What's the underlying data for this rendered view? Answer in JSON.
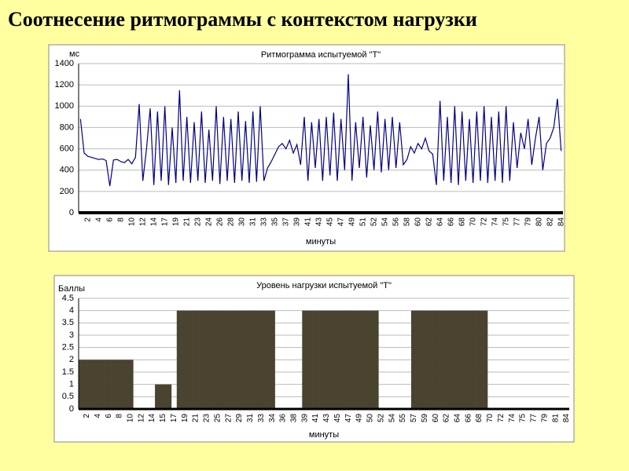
{
  "title": "Соотнесение ритмограммы с контекстом нагрузки",
  "chart_data": [
    {
      "type": "line",
      "title": "Ритмограмма испытуемой \"T\"",
      "y_label": "мс",
      "x_label": "минуты",
      "color": "#000080",
      "grid": true,
      "ylim": [
        0,
        1400
      ],
      "yticks": [
        0,
        200,
        400,
        600,
        800,
        1000,
        1200,
        1400
      ],
      "categories": [
        null,
        null,
        "2",
        null,
        null,
        "4",
        null,
        null,
        "6",
        null,
        null,
        "8",
        null,
        null,
        "10",
        null,
        null,
        "12",
        null,
        null,
        "14",
        null,
        null,
        "17",
        null,
        null,
        "19",
        null,
        null,
        "21",
        null,
        null,
        "23",
        null,
        null,
        "24",
        null,
        null,
        "26",
        null,
        null,
        "28",
        null,
        null,
        "30",
        null,
        null,
        "31",
        null,
        null,
        "33",
        null,
        null,
        "35",
        null,
        null,
        "37",
        null,
        null,
        "39",
        null,
        null,
        "41",
        null,
        null,
        "43",
        null,
        null,
        "45",
        null,
        null,
        "47",
        null,
        null,
        "49",
        null,
        null,
        "51",
        null,
        null,
        "52",
        null,
        null,
        "54",
        null,
        null,
        "56",
        null,
        null,
        "58",
        null,
        null,
        "60",
        null,
        null,
        "62",
        null,
        null,
        "64",
        null,
        null,
        "66",
        null,
        null,
        "68",
        null,
        null,
        "70",
        null,
        null,
        "72",
        null,
        null,
        "74",
        null,
        null,
        "75",
        null,
        null,
        "77",
        null,
        null,
        "79",
        null,
        null,
        "80",
        null,
        null,
        "82",
        null,
        null,
        "84"
      ],
      "values": [
        880,
        560,
        530,
        520,
        510,
        500,
        505,
        490,
        250,
        495,
        500,
        480,
        470,
        500,
        460,
        520,
        1020,
        300,
        600,
        980,
        260,
        950,
        300,
        1000,
        260,
        800,
        280,
        1150,
        300,
        900,
        280,
        850,
        300,
        950,
        280,
        780,
        300,
        1000,
        270,
        900,
        300,
        880,
        280,
        950,
        300,
        860,
        280,
        950,
        290,
        1000,
        300,
        420,
        480,
        550,
        620,
        650,
        600,
        680,
        560,
        640,
        450,
        900,
        300,
        850,
        420,
        880,
        300,
        900,
        350,
        940,
        300,
        880,
        400,
        1300,
        300,
        850,
        420,
        900,
        330,
        820,
        400,
        950,
        380,
        880,
        400,
        900,
        420,
        850,
        450,
        500,
        620,
        560,
        650,
        600,
        700,
        580,
        550,
        260,
        1050,
        300,
        900,
        280,
        1000,
        260,
        950,
        300,
        880,
        280,
        950,
        300,
        1000,
        280,
        900,
        300,
        950,
        280,
        1000,
        300,
        850,
        420,
        750,
        600,
        880,
        450,
        700,
        900,
        400,
        650,
        700,
        800,
        1070,
        580
      ]
    },
    {
      "type": "bar",
      "title": "Уровень нагрузки испытуемой \"T\"",
      "y_label": "Баллы",
      "x_label": "минуты",
      "color": "#4a4330",
      "grid": true,
      "ylim": [
        0,
        4.5
      ],
      "yticks": [
        0,
        0.5,
        1,
        1.5,
        2,
        2.5,
        3,
        3.5,
        4,
        4.5
      ],
      "categories": [
        null,
        "2",
        null,
        "4",
        null,
        "6",
        null,
        "8",
        null,
        "10",
        null,
        "12",
        null,
        "14",
        null,
        "15",
        null,
        "17",
        null,
        "19",
        null,
        "21",
        null,
        "23",
        null,
        "25",
        null,
        "27",
        null,
        "29",
        null,
        "31",
        null,
        "33",
        null,
        "34",
        null,
        "36",
        null,
        "38",
        null,
        "39",
        null,
        "41",
        null,
        "43",
        null,
        "45",
        null,
        "47",
        null,
        "49",
        null,
        "50",
        null,
        "52",
        null,
        "54",
        null,
        "55",
        null,
        "57",
        null,
        "59",
        null,
        "60",
        null,
        "62",
        null,
        "64",
        null,
        "66",
        null,
        "68",
        null,
        "70",
        null,
        "72",
        null,
        "74",
        null,
        "75",
        null,
        "77",
        null,
        "79",
        null,
        "81",
        null,
        "84"
      ],
      "values": [
        2,
        2,
        2,
        2,
        2,
        2,
        2,
        2,
        2,
        2,
        0,
        0,
        0,
        0,
        1,
        1,
        1,
        0,
        4,
        4,
        4,
        4,
        4,
        4,
        4,
        4,
        4,
        4,
        4,
        4,
        4,
        4,
        4,
        4,
        4,
        4,
        0,
        0,
        0,
        0,
        0,
        4,
        4,
        4,
        4,
        4,
        4,
        4,
        4,
        4,
        4,
        4,
        4,
        4,
        4,
        0,
        0,
        0,
        0,
        0,
        0,
        4,
        4,
        4,
        4,
        4,
        4,
        4,
        4,
        4,
        4,
        4,
        4,
        4,
        4,
        0,
        0,
        0,
        0,
        0,
        0,
        0,
        0,
        0,
        0,
        0,
        0,
        0,
        0,
        0
      ]
    }
  ]
}
